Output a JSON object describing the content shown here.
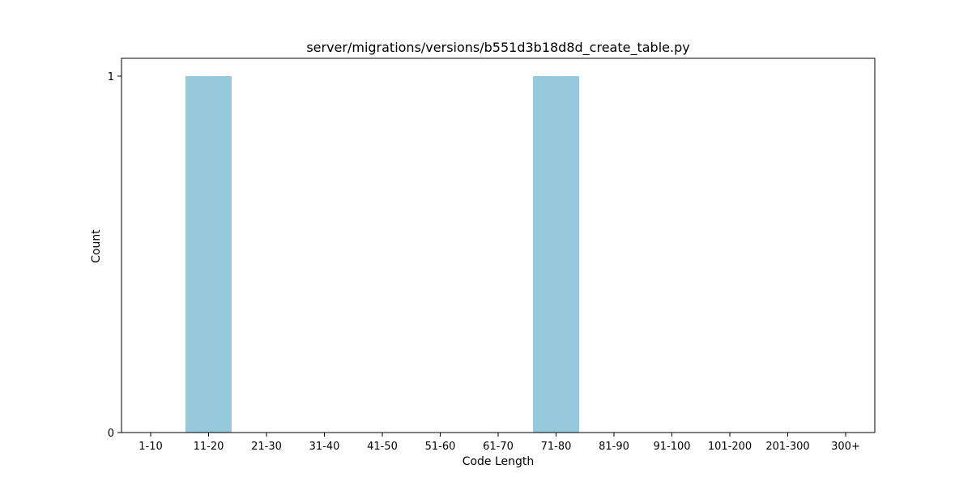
{
  "chart_data": {
    "type": "bar",
    "title": "server/migrations/versions/b551d3b18d8d_create_table.py",
    "xlabel": "Code Length",
    "ylabel": "Count",
    "categories": [
      "1-10",
      "11-20",
      "21-30",
      "31-40",
      "41-50",
      "51-60",
      "61-70",
      "71-80",
      "81-90",
      "91-100",
      "101-200",
      "201-300",
      "300+"
    ],
    "values": [
      0,
      1,
      0,
      0,
      0,
      0,
      0,
      1,
      0,
      0,
      0,
      0,
      0
    ],
    "ylim": [
      0,
      1.05
    ],
    "yticks": [
      0,
      1
    ],
    "bar_color": "#96c9dc",
    "grid": false,
    "legend": "none"
  }
}
